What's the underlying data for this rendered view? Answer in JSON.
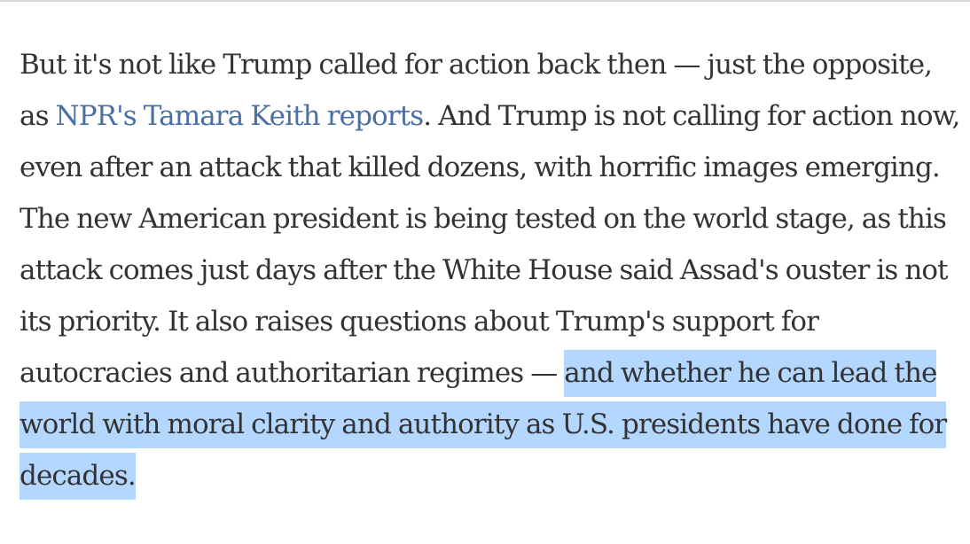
{
  "article": {
    "paragraph": {
      "text_before_link": "But it's not like Trump called for action back then — just the opposite, as ",
      "link_text": "NPR's Tamara Keith reports",
      "text_after_link": ". And Trump is not calling for action now, even after an attack that killed dozens, with horrific images emerging. The new American president is being tested on the world stage, as this attack comes just days after the White House said Assad's ouster is not its priority. It also raises questions about Trump's support for autocracies and authoritarian regimes — ",
      "highlighted_text": "and whether he can lead the world with moral clarity and authority as U.S. presidents have done for decades."
    }
  },
  "colors": {
    "text": "#333333",
    "link": "#4a6fa5",
    "selection_highlight": "#b4d7ff"
  }
}
